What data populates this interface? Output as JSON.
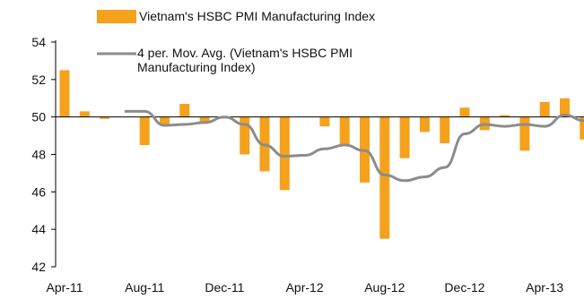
{
  "chart_data": {
    "type": "bar",
    "x": [
      "Apr-11",
      "May-11",
      "Jun-11",
      "Jul-11",
      "Aug-11",
      "Sep-11",
      "Oct-11",
      "Nov-11",
      "Dec-11",
      "Jan-12",
      "Feb-12",
      "Mar-12",
      "Apr-12",
      "May-12",
      "Jun-12",
      "Jul-12",
      "Aug-12",
      "Sep-12",
      "Oct-12",
      "Nov-12",
      "Dec-12",
      "Jan-13",
      "Feb-13",
      "Mar-13",
      "Apr-13",
      "May-13",
      "Jun-13"
    ],
    "x_tick_labels": [
      "Apr-11",
      "Aug-11",
      "Dec-11",
      "Apr-12",
      "Aug-12",
      "Dec-12",
      "Apr-13"
    ],
    "series": [
      {
        "name": "Vietnam's HSBC PMI Manufacturing Index",
        "kind": "bar",
        "color": "#F5A11C",
        "values": [
          52.5,
          50.3,
          49.9,
          null,
          48.5,
          49.6,
          50.7,
          49.7,
          50.0,
          48.0,
          47.1,
          46.1,
          null,
          49.5,
          48.5,
          46.5,
          43.5,
          47.8,
          49.2,
          48.6,
          50.5,
          49.3,
          50.1,
          48.2,
          50.8,
          51.0,
          48.8
        ]
      },
      {
        "name": "4 per. Mov. Avg. (Vietnam's HSBC PMI Manufacturing Index)",
        "kind": "line",
        "color": "#8C8C8C",
        "x": [
          "Jul-11",
          "Aug-11",
          "Sep-11",
          "Oct-11",
          "Nov-11",
          "Dec-11",
          "Jan-12",
          "Feb-12",
          "Mar-12",
          "Apr-12",
          "May-12",
          "Jun-12",
          "Jul-12",
          "Aug-12",
          "Sep-12",
          "Oct-12",
          "Nov-12",
          "Dec-12",
          "Jan-13",
          "Feb-13",
          "Mar-13",
          "Apr-13",
          "May-13",
          "Jun-13",
          "Jul-13"
        ],
        "values": [
          50.3,
          50.3,
          49.55,
          49.6,
          49.7,
          50.0,
          49.6,
          48.5,
          47.9,
          47.95,
          48.3,
          48.5,
          48.2,
          46.9,
          46.6,
          46.8,
          47.3,
          49.1,
          49.6,
          49.5,
          49.6,
          49.5,
          50.1,
          49.8,
          49.3
        ]
      }
    ],
    "ylim": [
      42,
      54
    ],
    "yticks": [
      42,
      44,
      46,
      48,
      50,
      52,
      54
    ],
    "baseline": 50,
    "grid": false,
    "legend_position": "top"
  }
}
